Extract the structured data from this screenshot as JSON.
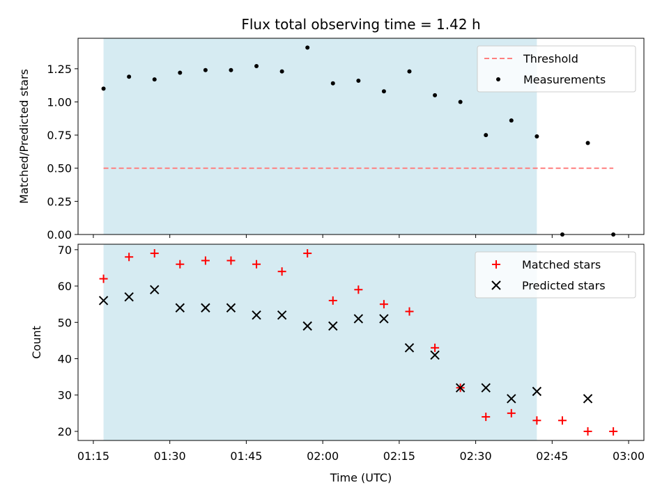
{
  "chart_data": [
    {
      "type": "scatter",
      "title": "Flux total observing time = 1.42 h",
      "ylabel": "Matched/Predicted stars",
      "xlabel": "",
      "ylim": [
        0,
        1.48
      ],
      "yticks": [
        "0.00",
        "0.25",
        "0.50",
        "0.75",
        "1.00",
        "1.25"
      ],
      "ytick_values": [
        0,
        0.25,
        0.5,
        0.75,
        1.0,
        1.25
      ],
      "shaded_span": {
        "x_start": "01:17",
        "x_end": "02:42",
        "color": "#add8e6"
      },
      "threshold": {
        "name": "Threshold",
        "y": 0.5,
        "x_start": "01:17",
        "x_end": "02:57",
        "color": "#ff7f7f",
        "style": "dashed"
      },
      "series": [
        {
          "name": "Measurements",
          "marker": "dot",
          "color": "#000000",
          "x": [
            "01:17",
            "01:22",
            "01:27",
            "01:32",
            "01:37",
            "01:42",
            "01:47",
            "01:52",
            "01:57",
            "02:02",
            "02:07",
            "02:12",
            "02:17",
            "02:22",
            "02:27",
            "02:32",
            "02:37",
            "02:42",
            "02:47",
            "02:52",
            "02:57"
          ],
          "y": [
            1.1,
            1.19,
            1.17,
            1.22,
            1.24,
            1.24,
            1.27,
            1.23,
            1.41,
            1.14,
            1.16,
            1.08,
            1.23,
            1.05,
            1.0,
            0.75,
            0.86,
            0.74,
            0.0,
            0.69,
            0.0
          ]
        }
      ],
      "legend_position": "top-right",
      "grid": false
    },
    {
      "type": "scatter",
      "title": "",
      "ylabel": "Count",
      "xlabel": "Time (UTC)",
      "ylim": [
        17.5,
        71.5
      ],
      "yticks": [
        "20",
        "30",
        "40",
        "50",
        "60",
        "70"
      ],
      "ytick_values": [
        20,
        30,
        40,
        50,
        60,
        70
      ],
      "xlim": [
        "01:12",
        "03:03"
      ],
      "xticks": [
        "01:15",
        "01:30",
        "01:45",
        "02:00",
        "02:15",
        "02:30",
        "02:45",
        "03:00"
      ],
      "shaded_span": {
        "x_start": "01:17",
        "x_end": "02:42",
        "color": "#add8e6"
      },
      "series": [
        {
          "name": "Matched stars",
          "marker": "plus",
          "color": "#ff0000",
          "x": [
            "01:17",
            "01:22",
            "01:27",
            "01:32",
            "01:37",
            "01:42",
            "01:47",
            "01:52",
            "01:57",
            "02:02",
            "02:07",
            "02:12",
            "02:17",
            "02:22",
            "02:27",
            "02:32",
            "02:37",
            "02:42",
            "02:47",
            "02:52",
            "02:57"
          ],
          "y": [
            62,
            68,
            69,
            66,
            67,
            67,
            66,
            64,
            69,
            56,
            59,
            55,
            53,
            43,
            32,
            24,
            25,
            23,
            23,
            20,
            20
          ]
        },
        {
          "name": "Predicted stars",
          "marker": "x",
          "color": "#000000",
          "x": [
            "01:17",
            "01:22",
            "01:27",
            "01:32",
            "01:37",
            "01:42",
            "01:47",
            "01:52",
            "01:57",
            "02:02",
            "02:07",
            "02:12",
            "02:17",
            "02:22",
            "02:27",
            "02:32",
            "02:37",
            "02:42",
            "02:52"
          ],
          "y": [
            56,
            57,
            59,
            54,
            54,
            54,
            52,
            52,
            49,
            49,
            51,
            51,
            43,
            41,
            32,
            32,
            29,
            31,
            29
          ]
        }
      ],
      "legend_position": "top-right",
      "grid": false
    }
  ]
}
